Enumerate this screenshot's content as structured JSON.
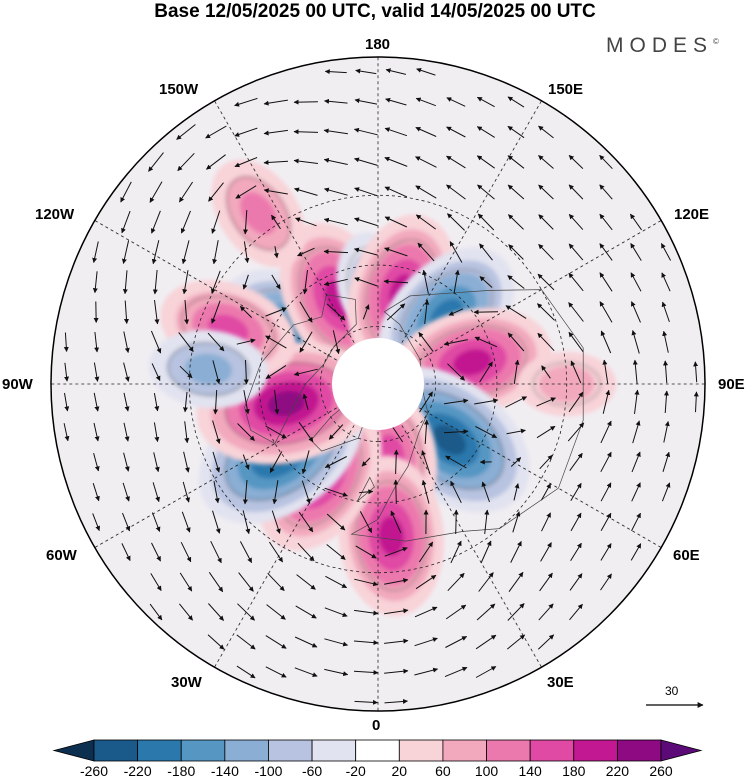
{
  "title": "Base 12/05/2025 00 UTC, valid 14/05/2025 00 UTC",
  "logo": {
    "text": "MODES",
    "mark": "©"
  },
  "longitude_labels": {
    "n180": "180",
    "w150": "150W",
    "e150": "150E",
    "w120": "120W",
    "e120": "120E",
    "w90": "90W",
    "e90": "90E",
    "w60": "60W",
    "e60": "60E",
    "w30": "30W",
    "e30": "30E",
    "s0": "0"
  },
  "colorbar": {
    "labels": [
      "-260",
      "-220",
      "-180",
      "-140",
      "-100",
      "-60",
      "-20",
      "20",
      "60",
      "100",
      "140",
      "180",
      "220",
      "260"
    ],
    "colors": [
      "#0d2f4f",
      "#1a5a8a",
      "#2b78ad",
      "#5596c3",
      "#8aaed4",
      "#b7c3e0",
      "#e2e3f0",
      "#ffffff",
      "#f8d3d8",
      "#f2a9bd",
      "#ec79ad",
      "#e04aa4",
      "#c21891",
      "#8e0a83",
      "#5c0a78"
    ]
  },
  "vector_scale": {
    "value": "30",
    "icon": "arrow-right-icon"
  },
  "anomaly_centers": [
    {
      "sign": "neg",
      "lon": -122,
      "lat": 56,
      "level": 4
    },
    {
      "sign": "pos",
      "lon": -155,
      "lat": 58,
      "level": 4
    },
    {
      "sign": "neg",
      "lon": -175,
      "lat": 55,
      "level": 1
    },
    {
      "sign": "pos",
      "lon": 165,
      "lat": 58,
      "level": 4
    },
    {
      "sign": "neg",
      "lon": 135,
      "lat": 57,
      "level": 4
    },
    {
      "sign": "pos",
      "lon": 103,
      "lat": 57,
      "level": 4
    },
    {
      "sign": "neg",
      "lon": 52,
      "lat": 59,
      "level": 5
    },
    {
      "sign": "pos",
      "lon": 10,
      "lat": 65,
      "level": 3
    },
    {
      "sign": "pos",
      "lon": 5,
      "lat": 40,
      "level": 4
    },
    {
      "sign": "pos",
      "lon": -32,
      "lat": 53,
      "level": 4
    },
    {
      "sign": "neg",
      "lon": -55,
      "lat": 50,
      "level": 5
    },
    {
      "sign": "pos",
      "lon": -78,
      "lat": 58,
      "level": 5
    },
    {
      "sign": "pos",
      "lon": -110,
      "lat": 38,
      "level": 3
    },
    {
      "sign": "neg",
      "lon": -95,
      "lat": 35,
      "level": 2
    },
    {
      "sign": "pos",
      "lon": -145,
      "lat": 25,
      "level": 2
    },
    {
      "sign": "pos",
      "lon": 90,
      "lat": 30,
      "level": 1
    }
  ]
}
